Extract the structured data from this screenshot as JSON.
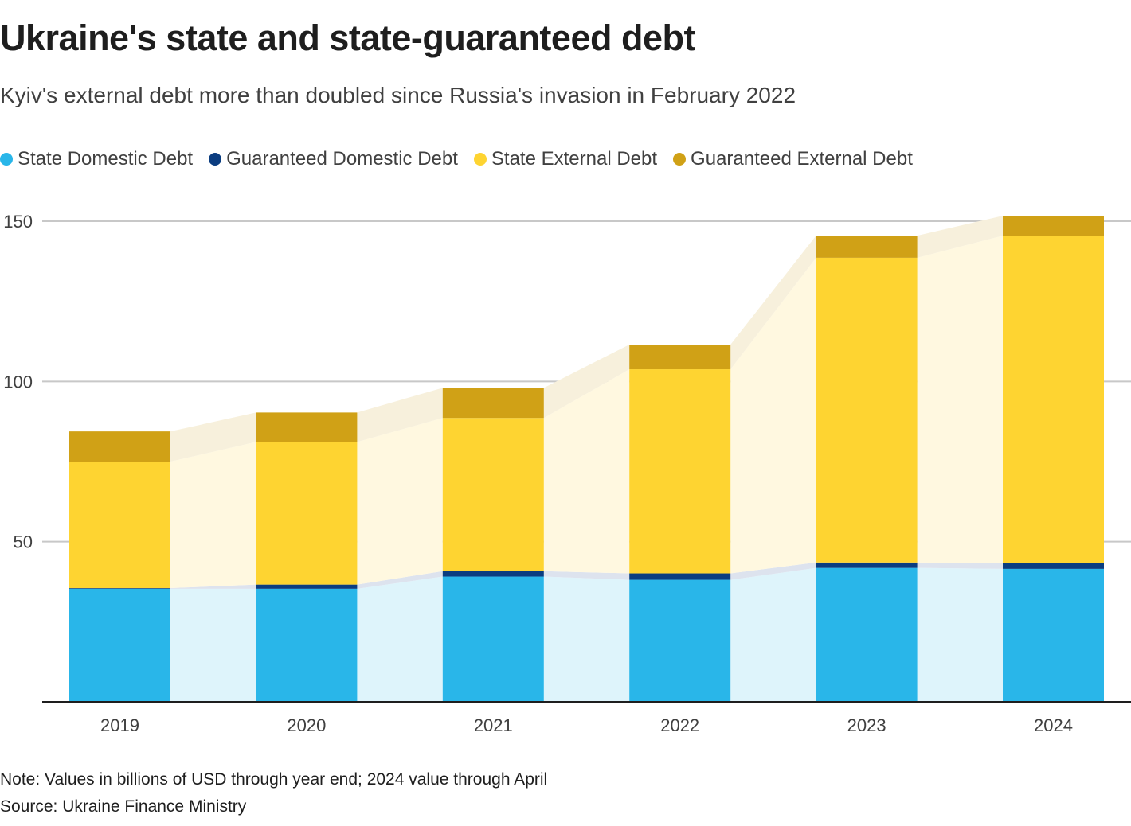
{
  "title": "Ukraine's state and state-guaranteed debt",
  "subtitle": "Kyiv's external debt more than doubled since Russia's invasion in February 2022",
  "note": "Note: Values in billions of USD through year end; 2024 value through April",
  "source": "Source: Ukraine Finance Ministry",
  "chart_data": {
    "type": "bar",
    "stacked": true,
    "categories": [
      "2019",
      "2020",
      "2021",
      "2022",
      "2023",
      "2024"
    ],
    "series": [
      {
        "name": "State Domestic Debt",
        "color": "#29b6e9",
        "values": [
          35.3,
          35.3,
          39.1,
          38.1,
          41.8,
          41.5
        ]
      },
      {
        "name": "Guaranteed Domestic Debt",
        "color": "#0b3d80",
        "values": [
          0.2,
          1.3,
          1.7,
          2.0,
          1.7,
          1.8
        ]
      },
      {
        "name": "State External Debt",
        "color": "#fed431",
        "values": [
          39.5,
          44.5,
          47.8,
          63.7,
          95.1,
          102.2
        ]
      },
      {
        "name": "Guaranteed External Debt",
        "color": "#d0a116",
        "values": [
          9.4,
          9.2,
          9.4,
          7.7,
          6.9,
          6.2
        ]
      }
    ],
    "area_colors": [
      "#def4fb",
      "#dde3ee",
      "#fff8e0",
      "#f7f0dc"
    ],
    "yticks": [
      50,
      100,
      150
    ],
    "ylim": [
      0,
      150
    ],
    "grid": true,
    "legend": "top-left"
  }
}
